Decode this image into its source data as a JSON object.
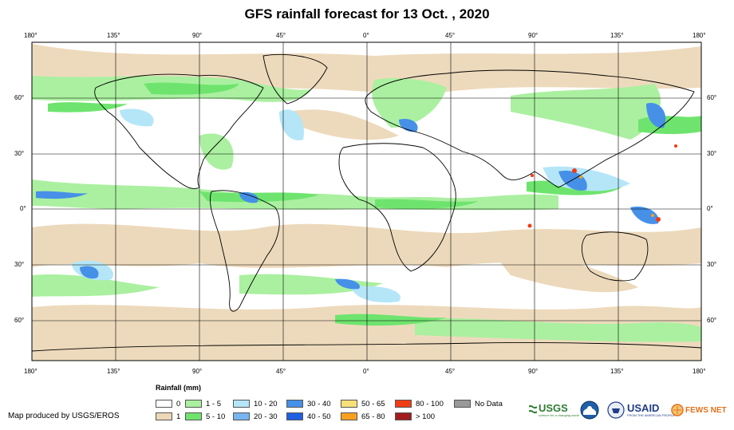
{
  "title": "GFS rainfall forecast for 13 Oct. , 2020",
  "lon_ticks": [
    "180°",
    "135°",
    "90°",
    "45°",
    "0°",
    "45°",
    "90°",
    "135°",
    "180°"
  ],
  "lat_ticks": [
    "60°",
    "30°",
    "0°",
    "30°",
    "60°"
  ],
  "legend": {
    "title": "Rainfall (mm)",
    "items": [
      {
        "label": "0",
        "color": "#ffffff"
      },
      {
        "label": "1",
        "color": "#ecd8b8"
      },
      {
        "label": "1 - 5",
        "color": "#aaf0a0"
      },
      {
        "label": "5 - 10",
        "color": "#6ee46e"
      },
      {
        "label": "10 - 20",
        "color": "#b4e6f8"
      },
      {
        "label": "20 - 30",
        "color": "#78b4ef"
      },
      {
        "label": "30 - 40",
        "color": "#4690e8"
      },
      {
        "label": "40 - 50",
        "color": "#2060e0"
      },
      {
        "label": "50 - 65",
        "color": "#f8e078"
      },
      {
        "label": "65 - 80",
        "color": "#f8a020"
      },
      {
        "label": "80 - 100",
        "color": "#f03c14"
      },
      {
        "label": "> 100",
        "color": "#a01e1e"
      },
      {
        "label": "No Data",
        "color": "#999999"
      }
    ]
  },
  "credit": "Map produced by USGS/EROS",
  "logos": {
    "usgs": "USGS",
    "usgs_tagline": "science for a changing world",
    "usaid": "USAID",
    "usaid_tagline": "FROM THE AMERICAN PEOPLE",
    "fews": "FEWS NET"
  },
  "colors": {
    "land_outline": "#000000",
    "usgs_green": "#2e7d32",
    "usaid_blue": "#1f3c88",
    "fews_orange": "#e2711d"
  }
}
